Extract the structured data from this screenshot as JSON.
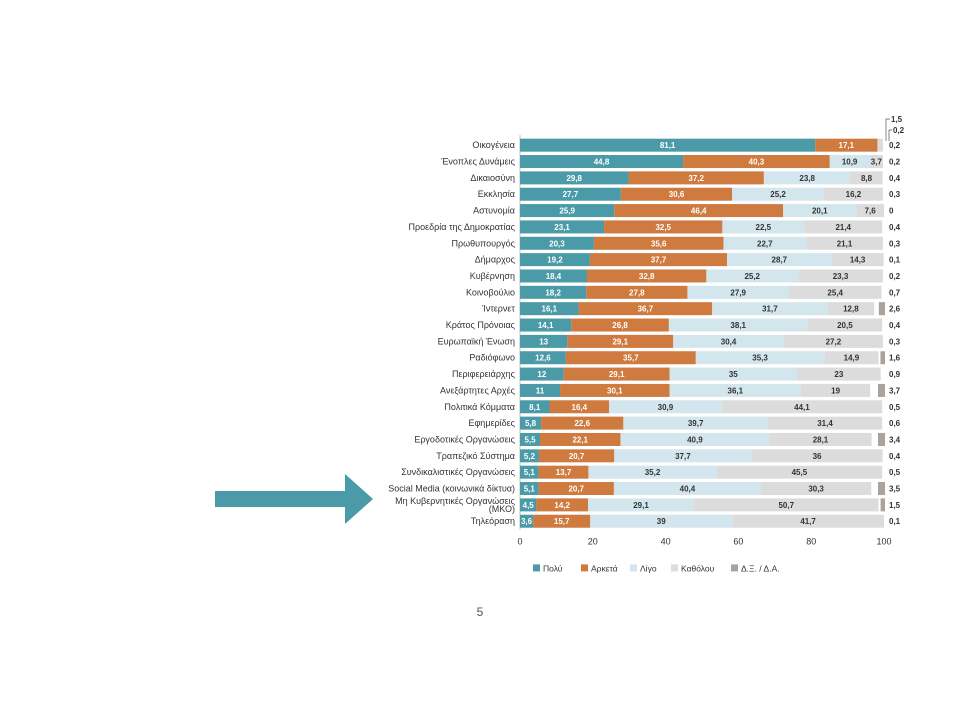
{
  "page": {
    "number": "5"
  },
  "chart_data": {
    "type": "bar",
    "orientation": "horizontal",
    "stacked": true,
    "categories": [
      "Οικογένεια",
      "Ένοπλες Δυνάμεις",
      "Δικαιοσύνη",
      "Εκκλησία",
      "Αστυνομία",
      "Προεδρία της Δημοκρατίας",
      "Πρωθυπουργός",
      "Δήμαρχος",
      "Κυβέρνηση",
      "Κοινοβούλιο",
      "Ίντερνετ",
      "Κράτος Πρόνοιας",
      "Ευρωπαϊκή Ένωση",
      "Ραδιόφωνο",
      "Περιφερειάρχης",
      "Ανεξάρτητες Αρχές",
      "Πολιτικά Κόμματα",
      "Εφημερίδες",
      "Εργοδοτικές Οργανώσεις",
      "Τραπεζικό Σύστημα",
      "Συνδικαλιστικές Οργανώσεις",
      "Social Media (κοινωνικά δίκτυα)",
      "Μη Κυβερνητικές Οργανώσεις (ΜΚΟ)",
      "Τηλεόραση"
    ],
    "series": [
      {
        "name": "Πολύ",
        "color": "#4a9aa8",
        "values": [
          81.1,
          44.8,
          29.8,
          27.7,
          25.9,
          23.1,
          20.3,
          19.2,
          18.4,
          18.2,
          16.1,
          14.1,
          13,
          12.6,
          12,
          11,
          8.1,
          5.8,
          5.5,
          5.2,
          5.1,
          5.1,
          4.5,
          3.6
        ],
        "labels": [
          "81,1",
          "44,8",
          "29,8",
          "27,7",
          "25,9",
          "23,1",
          "20,3",
          "19,2",
          "18,4",
          "18,2",
          "16,1",
          "14,1",
          "13",
          "12,6",
          "12",
          "11",
          "8,1",
          "5,8",
          "5,5",
          "5,2",
          "5,1",
          "5,1",
          "4,5",
          "3,6"
        ]
      },
      {
        "name": "Αρκετά",
        "color": "#cf7a3e",
        "values": [
          17.1,
          40.3,
          37.2,
          30.6,
          46.4,
          32.5,
          35.6,
          37.7,
          32.8,
          27.8,
          36.7,
          26.8,
          29.1,
          35.7,
          29.1,
          30.1,
          16.4,
          22.6,
          22.1,
          20.7,
          13.7,
          20.7,
          14.2,
          15.7
        ],
        "labels": [
          "17,1",
          "40,3",
          "37,2",
          "30,6",
          "46,4",
          "32,5",
          "35,6",
          "37,7",
          "32,8",
          "27,8",
          "36,7",
          "26,8",
          "29,1",
          "35,7",
          "29,1",
          "30,1",
          "16,4",
          "22,6",
          "22,1",
          "20,7",
          "13,7",
          "20,7",
          "14,2",
          "15,7"
        ]
      },
      {
        "name": "Λίγο",
        "color": "#d3e6ed",
        "values": [
          0,
          10.9,
          23.8,
          25.2,
          20.1,
          22.5,
          22.7,
          28.7,
          25.2,
          27.9,
          31.7,
          38.1,
          30.4,
          35.3,
          35,
          36.1,
          30.9,
          39.7,
          40.9,
          37.7,
          35.2,
          40.4,
          29.1,
          39
        ],
        "labels": [
          "",
          "10,9",
          "23,8",
          "25,2",
          "20,1",
          "22,5",
          "22,7",
          "28,7",
          "25,2",
          "27,9",
          "31,7",
          "38,1",
          "30,4",
          "35,3",
          "35",
          "36,1",
          "30,9",
          "39,7",
          "40,9",
          "37,7",
          "35,2",
          "40,4",
          "29,1",
          "39"
        ]
      },
      {
        "name": "Καθόλου",
        "color": "#dcdcdc",
        "values": [
          1.5,
          3.7,
          8.8,
          16.2,
          7.6,
          21.4,
          21.1,
          14.3,
          23.3,
          25.4,
          12.8,
          20.5,
          27.2,
          14.9,
          23,
          19,
          44.1,
          31.4,
          28.1,
          36,
          45.5,
          30.3,
          50.7,
          41.7
        ],
        "labels": [
          "",
          "3,7",
          "8,8",
          "16,2",
          "7,6",
          "21,4",
          "21,1",
          "14,3",
          "23,3",
          "25,4",
          "12,8",
          "20,5",
          "27,2",
          "14,9",
          "23",
          "19",
          "44,1",
          "31,4",
          "28,1",
          "36",
          "45,5",
          "30,3",
          "50,7",
          "41,7"
        ]
      },
      {
        "name": "Δ.Ξ. / Δ.Α.",
        "color": "#aaa39b",
        "values": [
          0.2,
          0.2,
          0.4,
          0.3,
          0,
          0.4,
          0.3,
          0.1,
          0.2,
          0.7,
          2.6,
          0.4,
          0.3,
          1.6,
          0.9,
          3.7,
          0.5,
          0.6,
          3.4,
          0.4,
          0.5,
          3.5,
          1.5,
          0.1
        ],
        "labels": [
          "0,2",
          "0,2",
          "0,4",
          "0,3",
          "0",
          "0,4",
          "0,3",
          "0,1",
          "0,2",
          "0,7",
          "2,6",
          "0,4",
          "0,3",
          "1,6",
          "0,9",
          "3,7",
          "0,5",
          "0,6",
          "3,4",
          "0,4",
          "0,5",
          "3,5",
          "1,5",
          "0,1"
        ]
      }
    ],
    "top_callouts": [
      "1,5",
      "0,2"
    ],
    "xlim": [
      0,
      100
    ],
    "xticks": [
      "0",
      "20",
      "40",
      "60",
      "80",
      "100"
    ],
    "legend_position": "bottom"
  }
}
